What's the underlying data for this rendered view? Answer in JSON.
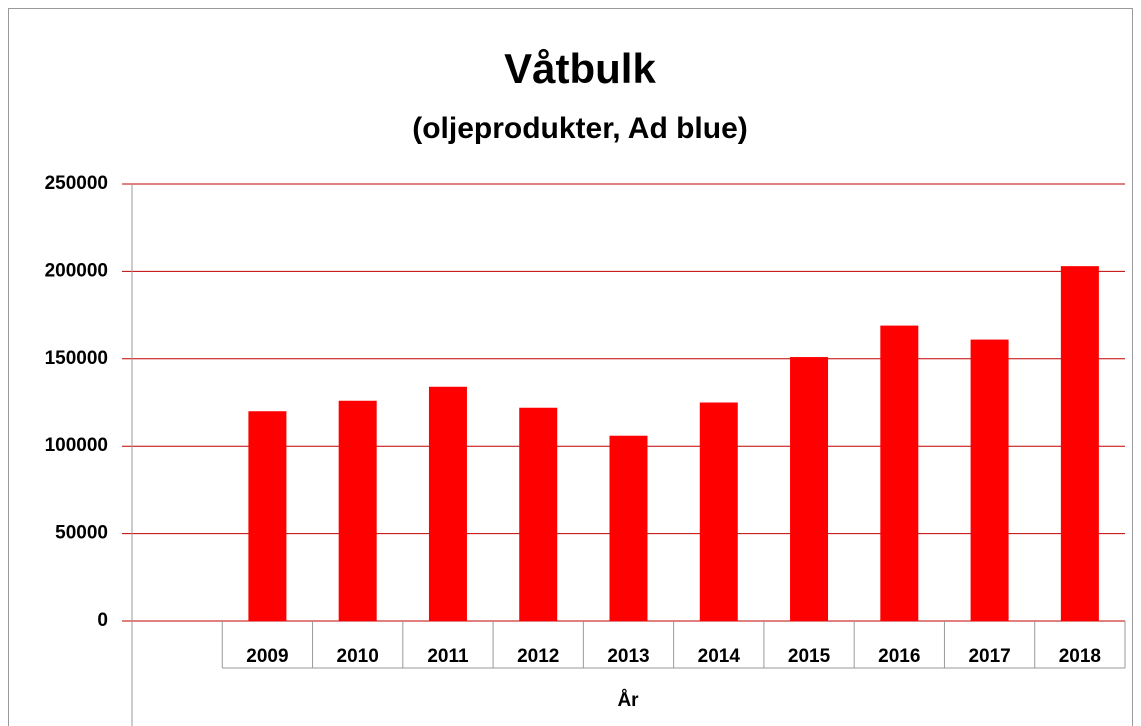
{
  "chart_data": {
    "type": "bar",
    "title": "Våtbulk",
    "subtitle": "(oljeprodukter, Ad blue)",
    "x_label": "År",
    "categories": [
      null,
      "2009",
      "2010",
      "2011",
      "2012",
      "2013",
      "2014",
      "2015",
      "2016",
      "2017",
      "2018"
    ],
    "values": [
      null,
      120000,
      126000,
      134000,
      122000,
      106000,
      125000,
      151000,
      169000,
      161000,
      203000
    ],
    "color": "#ff0000",
    "grid_color": "#c00000",
    "ylim": [
      0,
      250000
    ],
    "yticks": [
      0,
      50000,
      100000,
      150000,
      200000,
      250000
    ],
    "grid": true
  }
}
